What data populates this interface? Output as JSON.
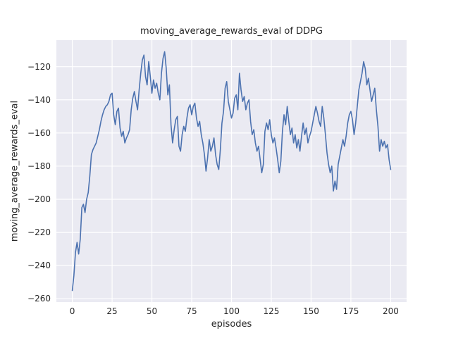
{
  "chart_data": {
    "type": "line",
    "title": "moving_average_rewards_eval of DDPG",
    "xlabel": "episodes",
    "ylabel": "moving_average_rewards_eval",
    "x_mode": "index",
    "values": [
      -255,
      -246,
      -232,
      -226,
      -233,
      -224,
      -205,
      -203,
      -208,
      -200,
      -196,
      -186,
      -173,
      -170,
      -168,
      -166,
      -162,
      -158,
      -153,
      -149,
      -146,
      -144,
      -143,
      -141,
      -137,
      -136,
      -149,
      -155,
      -147,
      -145,
      -157,
      -162,
      -159,
      -166,
      -163,
      -161,
      -158,
      -146,
      -139,
      -135,
      -141,
      -146,
      -134,
      -124,
      -116,
      -113,
      -126,
      -131,
      -117,
      -126,
      -136,
      -128,
      -133,
      -130,
      -136,
      -140,
      -124,
      -115,
      -111,
      -121,
      -137,
      -131,
      -155,
      -166,
      -158,
      -152,
      -150,
      -168,
      -171,
      -161,
      -156,
      -159,
      -151,
      -145,
      -143,
      -149,
      -144,
      -142,
      -151,
      -156,
      -153,
      -161,
      -166,
      -173,
      -183,
      -175,
      -164,
      -171,
      -168,
      -163,
      -173,
      -179,
      -182,
      -170,
      -154,
      -147,
      -133,
      -129,
      -141,
      -146,
      -151,
      -148,
      -139,
      -137,
      -146,
      -124,
      -134,
      -141,
      -138,
      -146,
      -142,
      -140,
      -153,
      -161,
      -158,
      -166,
      -171,
      -168,
      -176,
      -184,
      -179,
      -159,
      -154,
      -158,
      -152,
      -161,
      -166,
      -163,
      -169,
      -176,
      -184,
      -177,
      -159,
      -149,
      -155,
      -144,
      -153,
      -161,
      -157,
      -166,
      -161,
      -169,
      -164,
      -171,
      -162,
      -154,
      -161,
      -157,
      -166,
      -162,
      -159,
      -154,
      -149,
      -144,
      -148,
      -153,
      -156,
      -144,
      -151,
      -161,
      -172,
      -179,
      -184,
      -180,
      -195,
      -189,
      -194,
      -179,
      -174,
      -169,
      -164,
      -168,
      -162,
      -154,
      -149,
      -147,
      -152,
      -161,
      -154,
      -144,
      -134,
      -129,
      -124,
      -117,
      -121,
      -131,
      -127,
      -134,
      -141,
      -137,
      -133,
      -146,
      -156,
      -171,
      -164,
      -168,
      -165,
      -169,
      -167,
      -176,
      -182
    ],
    "xlim": [
      -10,
      210
    ],
    "ylim": [
      -262,
      -104
    ],
    "x_tick_values": [
      0,
      25,
      50,
      75,
      100,
      125,
      150,
      175,
      200
    ],
    "x_tick_labels": [
      "0",
      "25",
      "50",
      "75",
      "100",
      "125",
      "150",
      "175",
      "200"
    ],
    "y_tick_values": [
      -260,
      -240,
      -220,
      -200,
      -180,
      -160,
      -140,
      -120
    ],
    "y_tick_labels": [
      "−260",
      "−240",
      "−220",
      "−200",
      "−180",
      "−160",
      "−140",
      "−120"
    ],
    "grid": true,
    "legend": "none",
    "colors": {
      "line": "#4c72b0",
      "plot_background": "#eaeaf2",
      "grid": "#ffffff",
      "figure_background": "#ffffff",
      "text": "#262626"
    }
  }
}
